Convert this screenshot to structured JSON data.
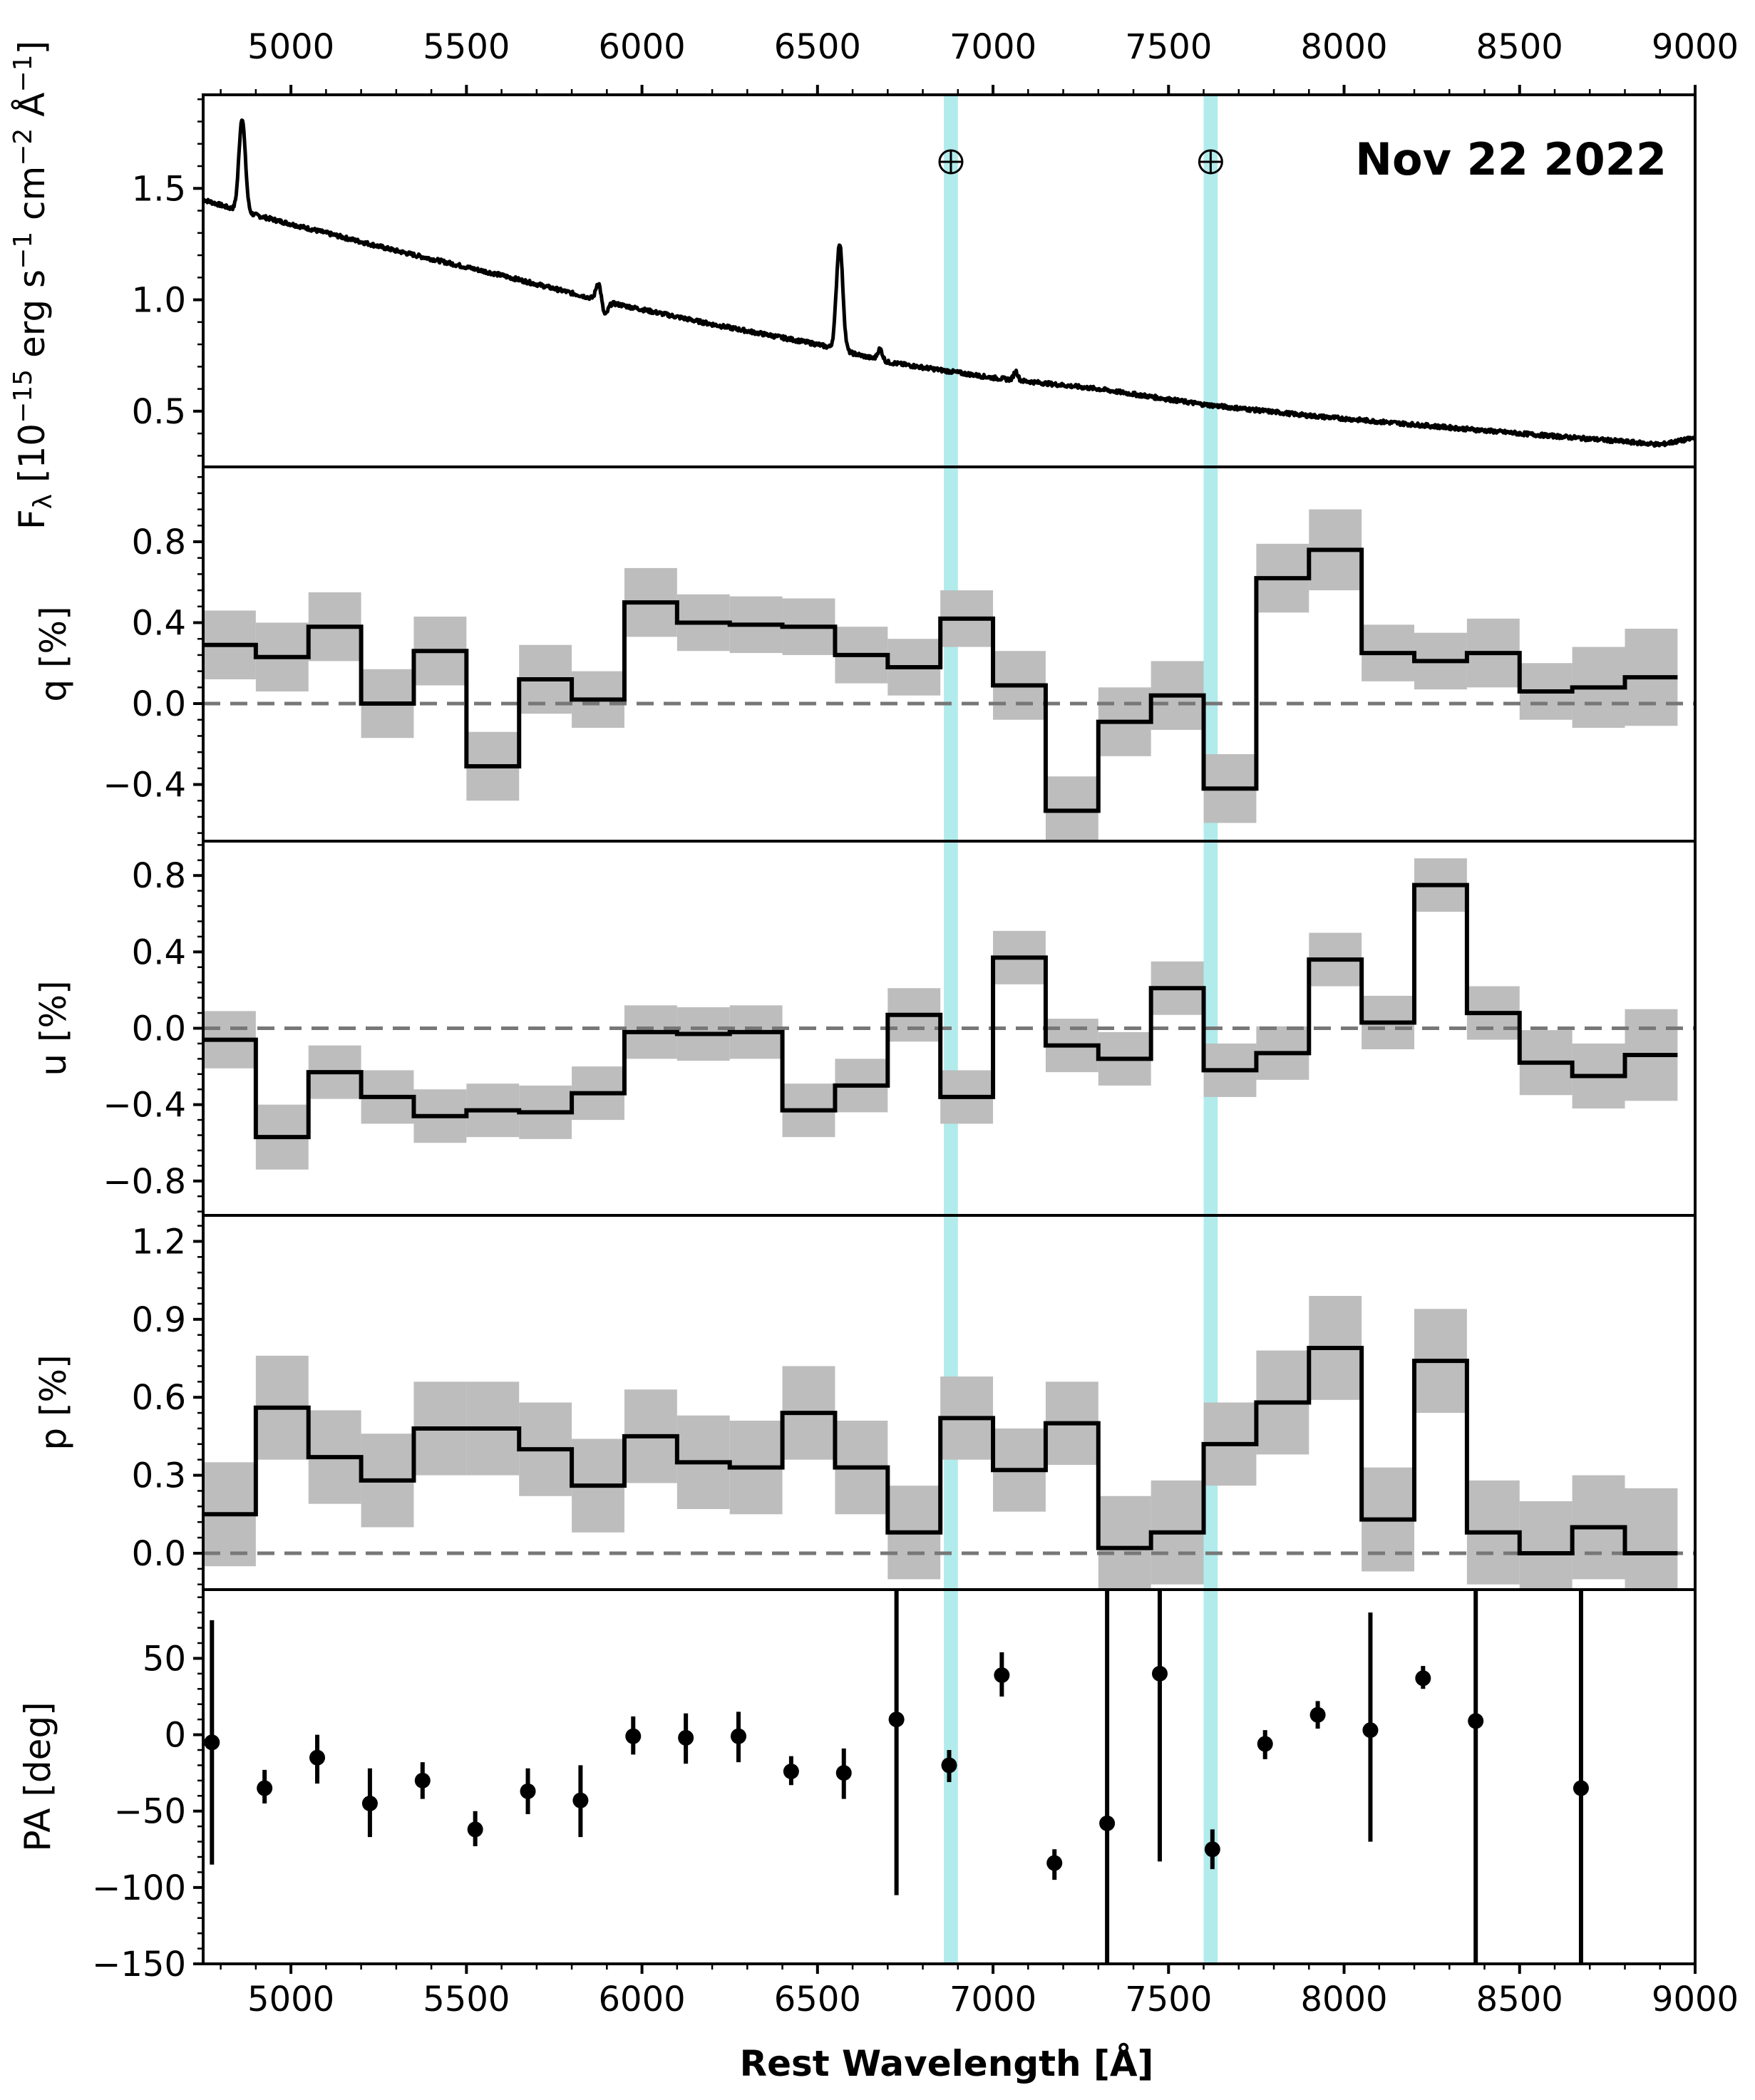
{
  "chart_data": {
    "type": "multi-panel",
    "annotation": "Nov 22 2022",
    "xlabel": "Rest Wavelength [Å]",
    "xlim": [
      4750,
      9000
    ],
    "xticks": [
      5000,
      5500,
      6000,
      6500,
      7000,
      7500,
      8000,
      8500,
      9000
    ],
    "telluric_bands": [
      {
        "center": 6880,
        "width": 40,
        "symbol": "⊕"
      },
      {
        "center": 7620,
        "width": 40,
        "symbol": "⊕"
      }
    ],
    "bin_edges": [
      4750,
      4900,
      5050,
      5200,
      5350,
      5500,
      5650,
      5800,
      5950,
      6100,
      6250,
      6400,
      6550,
      6700,
      6850,
      7000,
      7150,
      7300,
      7450,
      7600,
      7750,
      7900,
      8050,
      8200,
      8350,
      8500,
      8650,
      8800
    ],
    "flux": {
      "ylabel": "F_λ [10^-15 erg s^-1 cm^-2 Å^-1]",
      "ylabel_parts": [
        "F",
        "λ",
        " [10",
        "−15",
        " erg s",
        "−1",
        " cm",
        "−2",
        " Å",
        "−1",
        "]"
      ],
      "ylim": [
        0.25,
        1.92
      ],
      "yticks": [
        0.5,
        1.0,
        1.5
      ],
      "ytick_labels": [
        "0.5",
        "1.0",
        "1.5"
      ],
      "continuum": [
        [
          4750,
          1.45
        ],
        [
          4850,
          1.4
        ],
        [
          5000,
          1.34
        ],
        [
          5300,
          1.22
        ],
        [
          5600,
          1.11
        ],
        [
          5900,
          0.99
        ],
        [
          6200,
          0.89
        ],
        [
          6500,
          0.8
        ],
        [
          6700,
          0.72
        ],
        [
          7000,
          0.65
        ],
        [
          7300,
          0.6
        ],
        [
          7600,
          0.53
        ],
        [
          7900,
          0.48
        ],
        [
          8200,
          0.44
        ],
        [
          8500,
          0.4
        ],
        [
          8750,
          0.37
        ],
        [
          8900,
          0.35
        ],
        [
          9000,
          0.38
        ]
      ],
      "emission_lines": [
        {
          "center": 4861,
          "amplitude": 0.42,
          "sigma": 9
        },
        {
          "center": 5876,
          "amplitude": 0.08,
          "sigma": 7
        },
        {
          "center": 6563,
          "amplitude": 0.48,
          "sigma": 9
        },
        {
          "center": 6678,
          "amplitude": 0.05,
          "sigma": 7
        },
        {
          "center": 7065,
          "amplitude": 0.04,
          "sigma": 6
        }
      ],
      "absorption_lines": [
        {
          "center": 5895,
          "amplitude": -0.06,
          "sigma": 8
        }
      ]
    },
    "q": {
      "ylabel": "q [%]",
      "ylim": [
        -0.68,
        1.17
      ],
      "yticks": [
        -0.4,
        0.0,
        0.4,
        0.8
      ],
      "ytick_labels": [
        "−0.4",
        "0.0",
        "0.4",
        "0.8"
      ],
      "values": [
        0.29,
        0.23,
        0.38,
        0.0,
        0.26,
        -0.31,
        0.12,
        0.02,
        0.5,
        0.4,
        0.39,
        0.38,
        0.24,
        0.18,
        0.42,
        0.09,
        -0.53,
        -0.09,
        0.04,
        -0.42,
        0.62,
        0.76,
        0.25,
        0.21,
        0.25,
        0.06,
        0.08,
        0.13
      ],
      "errors": [
        0.17,
        0.17,
        0.17,
        0.17,
        0.17,
        0.17,
        0.17,
        0.14,
        0.17,
        0.14,
        0.14,
        0.14,
        0.14,
        0.14,
        0.14,
        0.17,
        0.17,
        0.17,
        0.17,
        0.17,
        0.17,
        0.2,
        0.14,
        0.14,
        0.17,
        0.14,
        0.2,
        0.24
      ]
    },
    "u": {
      "ylabel": "u [%]",
      "ylim": [
        -0.98,
        0.98
      ],
      "yticks": [
        -0.8,
        -0.4,
        0.0,
        0.4,
        0.8
      ],
      "ytick_labels": [
        "−0.8",
        "−0.4",
        "0.0",
        "0.4",
        "0.8"
      ],
      "values": [
        -0.06,
        -0.57,
        -0.23,
        -0.36,
        -0.46,
        -0.43,
        -0.44,
        -0.34,
        -0.02,
        -0.03,
        -0.02,
        -0.43,
        -0.3,
        0.07,
        -0.36,
        0.37,
        -0.09,
        -0.16,
        0.21,
        -0.22,
        -0.13,
        0.36,
        0.03,
        0.75,
        0.08,
        -0.18,
        -0.25,
        -0.14
      ],
      "errors": [
        0.15,
        0.17,
        0.14,
        0.14,
        0.14,
        0.14,
        0.14,
        0.14,
        0.14,
        0.14,
        0.14,
        0.14,
        0.14,
        0.14,
        0.14,
        0.14,
        0.14,
        0.14,
        0.14,
        0.14,
        0.14,
        0.14,
        0.14,
        0.14,
        0.14,
        0.17,
        0.17,
        0.24
      ]
    },
    "p": {
      "ylabel": "p [%]",
      "ylim": [
        -0.14,
        1.3
      ],
      "yticks": [
        0.0,
        0.3,
        0.6,
        0.9,
        1.2
      ],
      "ytick_labels": [
        "0.0",
        "0.3",
        "0.6",
        "0.9",
        "1.2"
      ],
      "values": [
        0.15,
        0.56,
        0.37,
        0.28,
        0.48,
        0.48,
        0.4,
        0.26,
        0.45,
        0.35,
        0.33,
        0.54,
        0.33,
        0.08,
        0.52,
        0.32,
        0.5,
        0.02,
        0.08,
        0.42,
        0.58,
        0.79,
        0.13,
        0.74,
        0.08,
        0.0,
        0.1,
        0.0
      ],
      "errors": [
        0.2,
        0.2,
        0.18,
        0.18,
        0.18,
        0.18,
        0.18,
        0.18,
        0.18,
        0.18,
        0.18,
        0.18,
        0.18,
        0.18,
        0.16,
        0.16,
        0.16,
        0.2,
        0.2,
        0.16,
        0.2,
        0.2,
        0.2,
        0.2,
        0.2,
        0.2,
        0.2,
        0.25
      ]
    },
    "pa": {
      "ylabel": "PA [deg]",
      "ylim": [
        -150,
        95
      ],
      "yticks": [
        -150,
        -100,
        -50,
        0,
        50
      ],
      "ytick_labels": [
        "−150",
        "−100",
        "−50",
        "0",
        "50"
      ],
      "points": [
        {
          "x": 4775,
          "y": -5,
          "lo": -85,
          "hi": 75
        },
        {
          "x": 4925,
          "y": -35,
          "lo": -45,
          "hi": -23
        },
        {
          "x": 5075,
          "y": -15,
          "lo": -32,
          "hi": 0
        },
        {
          "x": 5225,
          "y": -45,
          "lo": -67,
          "hi": -22
        },
        {
          "x": 5375,
          "y": -30,
          "lo": -42,
          "hi": -18
        },
        {
          "x": 5525,
          "y": -62,
          "lo": -73,
          "hi": -50
        },
        {
          "x": 5675,
          "y": -37,
          "lo": -52,
          "hi": -22
        },
        {
          "x": 5825,
          "y": -43,
          "lo": -67,
          "hi": -20
        },
        {
          "x": 5975,
          "y": -1,
          "lo": -13,
          "hi": 12
        },
        {
          "x": 6125,
          "y": -2,
          "lo": -19,
          "hi": 14
        },
        {
          "x": 6275,
          "y": -1,
          "lo": -18,
          "hi": 15
        },
        {
          "x": 6425,
          "y": -24,
          "lo": -33,
          "hi": -14
        },
        {
          "x": 6575,
          "y": -25,
          "lo": -42,
          "hi": -9
        },
        {
          "x": 6725,
          "y": 10,
          "lo": -105,
          "hi": 95
        },
        {
          "x": 6875,
          "y": -20,
          "lo": -31,
          "hi": -10
        },
        {
          "x": 7025,
          "y": 39,
          "lo": 25,
          "hi": 54
        },
        {
          "x": 7175,
          "y": -84,
          "lo": -95,
          "hi": -75
        },
        {
          "x": 7325,
          "y": -58,
          "lo": -150,
          "hi": 95
        },
        {
          "x": 7475,
          "y": 40,
          "lo": -83,
          "hi": 95
        },
        {
          "x": 7625,
          "y": -75,
          "lo": -88,
          "hi": -62
        },
        {
          "x": 7775,
          "y": -6,
          "lo": -16,
          "hi": 3
        },
        {
          "x": 7925,
          "y": 13,
          "lo": 4,
          "hi": 22
        },
        {
          "x": 8075,
          "y": 3,
          "lo": -70,
          "hi": 80
        },
        {
          "x": 8225,
          "y": 37,
          "lo": 30,
          "hi": 45
        },
        {
          "x": 8375,
          "y": 9,
          "lo": -150,
          "hi": 95
        },
        {
          "x": 8675,
          "y": -35,
          "lo": -150,
          "hi": 95
        }
      ]
    }
  }
}
